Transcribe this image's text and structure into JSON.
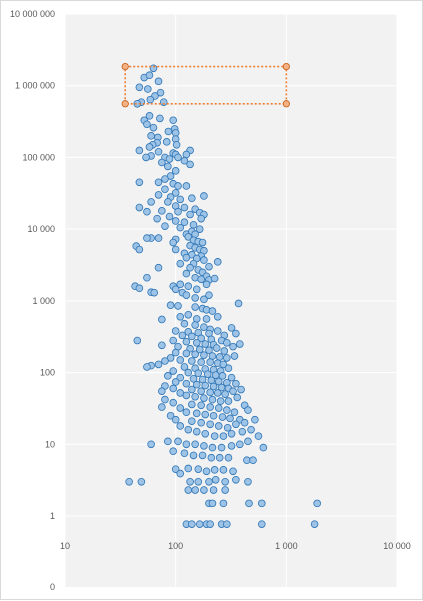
{
  "colors": {
    "point_fill": "#9dc3e6",
    "point_stroke": "#2e75b6",
    "selection": "#ed7d31",
    "plot_area": "#f2f2f2",
    "gridline": "#ffffff",
    "tick_text": "#595959"
  },
  "chart_data": {
    "type": "scatter",
    "title": "",
    "xlabel": "",
    "ylabel": "",
    "x_scale": "log",
    "y_scale": "log",
    "xlim": [
      10,
      10000
    ],
    "ylim": [
      1,
      10000000
    ],
    "grid": "vertical and horizontal major gridlines",
    "legend": "none",
    "x_ticks": [
      {
        "value": 10,
        "label": "10"
      },
      {
        "value": 100,
        "label": "100"
      },
      {
        "value": 1000,
        "label": "1 000"
      },
      {
        "value": 10000,
        "label": "10 000"
      }
    ],
    "y_ticks": [
      {
        "value": 10000000,
        "label": "10 000 000"
      },
      {
        "value": 1000000,
        "label": "1 000 000"
      },
      {
        "value": 100000,
        "label": "100 000"
      },
      {
        "value": 10000,
        "label": "10 000"
      },
      {
        "value": 1000,
        "label": "1 000"
      },
      {
        "value": 100,
        "label": "100"
      },
      {
        "value": 10,
        "label": "10"
      },
      {
        "value": 1,
        "label": "1"
      }
    ],
    "y_bottom_label": "0",
    "selection_box": {
      "x": [
        35,
        1000
      ],
      "y": [
        560000,
        1850000
      ]
    },
    "points": [
      [
        63,
        1750000
      ],
      [
        52,
        1300000
      ],
      [
        58,
        1400000
      ],
      [
        70,
        1150000
      ],
      [
        47,
        950000
      ],
      [
        56,
        900000
      ],
      [
        73,
        800000
      ],
      [
        65,
        720000
      ],
      [
        59,
        640000
      ],
      [
        49,
        590000
      ],
      [
        78,
        590000
      ],
      [
        45,
        560000
      ],
      [
        58,
        380000
      ],
      [
        72,
        350000
      ],
      [
        52,
        330000
      ],
      [
        95,
        330000
      ],
      [
        55,
        290000
      ],
      [
        63,
        260000
      ],
      [
        98,
        250000
      ],
      [
        86,
        230000
      ],
      [
        100,
        220000
      ],
      [
        60,
        200000
      ],
      [
        69,
        190000
      ],
      [
        100,
        180000
      ],
      [
        83,
        165000
      ],
      [
        68,
        160000
      ],
      [
        62,
        150000
      ],
      [
        102,
        150000
      ],
      [
        58,
        140000
      ],
      [
        47,
        125000
      ],
      [
        70,
        120000
      ],
      [
        95,
        115000
      ],
      [
        100,
        110000
      ],
      [
        135,
        125000
      ],
      [
        125,
        110000
      ],
      [
        60,
        105000
      ],
      [
        54,
        100000
      ],
      [
        80,
        100000
      ],
      [
        105,
        100000
      ],
      [
        88,
        95000
      ],
      [
        75,
        85000
      ],
      [
        120,
        90000
      ],
      [
        85,
        75000
      ],
      [
        100,
        65000
      ],
      [
        135,
        80000
      ],
      [
        90,
        55000
      ],
      [
        80,
        50000
      ],
      [
        70,
        45000
      ],
      [
        47,
        45000
      ],
      [
        95,
        43000
      ],
      [
        105,
        40000
      ],
      [
        125,
        40000
      ],
      [
        80,
        36000
      ],
      [
        100,
        32000
      ],
      [
        70,
        30000
      ],
      [
        90,
        28000
      ],
      [
        110,
        26000
      ],
      [
        180,
        29000
      ],
      [
        140,
        27000
      ],
      [
        85,
        24000
      ],
      [
        60,
        24000
      ],
      [
        47,
        20000
      ],
      [
        100,
        21000
      ],
      [
        120,
        20000
      ],
      [
        75,
        18000
      ],
      [
        55,
        17500
      ],
      [
        150,
        19000
      ],
      [
        165,
        17000
      ],
      [
        105,
        17500
      ],
      [
        135,
        16000
      ],
      [
        180,
        16000
      ],
      [
        88,
        15000
      ],
      [
        170,
        14000
      ],
      [
        68,
        14000
      ],
      [
        100,
        13000
      ],
      [
        120,
        12500
      ],
      [
        145,
        11500
      ],
      [
        80,
        11000
      ],
      [
        110,
        10500
      ],
      [
        165,
        10000
      ],
      [
        60,
        7500
      ],
      [
        55,
        7500
      ],
      [
        70,
        7500
      ],
      [
        44,
        5800
      ],
      [
        47,
        5200
      ],
      [
        100,
        7200
      ],
      [
        95,
        6500
      ],
      [
        125,
        8500
      ],
      [
        140,
        9300
      ],
      [
        150,
        8500
      ],
      [
        130,
        7800
      ],
      [
        145,
        7000
      ],
      [
        160,
        6700
      ],
      [
        175,
        6500
      ],
      [
        135,
        5900
      ],
      [
        150,
        5500
      ],
      [
        100,
        5200
      ],
      [
        165,
        5200
      ],
      [
        180,
        5000
      ],
      [
        120,
        4600
      ],
      [
        140,
        4400
      ],
      [
        125,
        4000
      ],
      [
        170,
        4200
      ],
      [
        155,
        3900
      ],
      [
        180,
        3700
      ],
      [
        110,
        3300
      ],
      [
        145,
        3300
      ],
      [
        240,
        3500
      ],
      [
        200,
        3000
      ],
      [
        135,
        2900
      ],
      [
        160,
        2700
      ],
      [
        175,
        2500
      ],
      [
        125,
        2400
      ],
      [
        190,
        2200
      ],
      [
        70,
        2900
      ],
      [
        55,
        2100
      ],
      [
        150,
        2100
      ],
      [
        170,
        2000
      ],
      [
        200,
        1950
      ],
      [
        225,
        2050
      ],
      [
        110,
        1700
      ],
      [
        130,
        1600
      ],
      [
        190,
        1700
      ],
      [
        95,
        1600
      ],
      [
        43,
        1600
      ],
      [
        47,
        1500
      ],
      [
        100,
        1450
      ],
      [
        155,
        1450
      ],
      [
        115,
        1300
      ],
      [
        60,
        1320
      ],
      [
        64,
        1300
      ],
      [
        125,
        1200
      ],
      [
        150,
        1100
      ],
      [
        180,
        1050
      ],
      [
        200,
        1200
      ],
      [
        370,
        920
      ],
      [
        90,
        870
      ],
      [
        105,
        850
      ],
      [
        150,
        820
      ],
      [
        175,
        780
      ],
      [
        190,
        750
      ],
      [
        215,
        720
      ],
      [
        130,
        640
      ],
      [
        75,
        550
      ],
      [
        110,
        600
      ],
      [
        155,
        560
      ],
      [
        190,
        560
      ],
      [
        240,
        600
      ],
      [
        120,
        480
      ],
      [
        150,
        460
      ],
      [
        180,
        430
      ],
      [
        205,
        400
      ],
      [
        100,
        380
      ],
      [
        130,
        370
      ],
      [
        160,
        360
      ],
      [
        200,
        350
      ],
      [
        240,
        380
      ],
      [
        275,
        330
      ],
      [
        320,
        420
      ],
      [
        115,
        330
      ],
      [
        140,
        320
      ],
      [
        170,
        300
      ],
      [
        210,
        290
      ],
      [
        260,
        280
      ],
      [
        290,
        260
      ],
      [
        350,
        350
      ],
      [
        45,
        280
      ],
      [
        95,
        280
      ],
      [
        125,
        270
      ],
      [
        155,
        260
      ],
      [
        185,
        250
      ],
      [
        220,
        245
      ],
      [
        75,
        240
      ],
      [
        105,
        230
      ],
      [
        135,
        215
      ],
      [
        165,
        210
      ],
      [
        200,
        205
      ],
      [
        235,
        220
      ],
      [
        275,
        200
      ],
      [
        330,
        230
      ],
      [
        380,
        250
      ],
      [
        100,
        190
      ],
      [
        125,
        185
      ],
      [
        150,
        180
      ],
      [
        180,
        175
      ],
      [
        215,
        170
      ],
      [
        250,
        165
      ],
      [
        290,
        160
      ],
      [
        340,
        170
      ],
      [
        90,
        160
      ],
      [
        110,
        150
      ],
      [
        140,
        145
      ],
      [
        170,
        140
      ],
      [
        205,
        140
      ],
      [
        240,
        135
      ],
      [
        270,
        130
      ],
      [
        80,
        145
      ],
      [
        70,
        130
      ],
      [
        60,
        125
      ],
      [
        55,
        120
      ],
      [
        120,
        120
      ],
      [
        150,
        115
      ],
      [
        185,
        112
      ],
      [
        220,
        110
      ],
      [
        255,
        105
      ],
      [
        300,
        115
      ],
      [
        95,
        105
      ],
      [
        130,
        100
      ],
      [
        160,
        98
      ],
      [
        195,
        95
      ],
      [
        230,
        92
      ],
      [
        265,
        90
      ],
      [
        320,
        85
      ],
      [
        85,
        90
      ],
      [
        110,
        85
      ],
      [
        145,
        82
      ],
      [
        175,
        80
      ],
      [
        210,
        78
      ],
      [
        245,
        75
      ],
      [
        290,
        72
      ],
      [
        350,
        70
      ],
      [
        100,
        74
      ],
      [
        125,
        70
      ],
      [
        155,
        68
      ],
      [
        185,
        66
      ],
      [
        220,
        64
      ],
      [
        260,
        62
      ],
      [
        300,
        60
      ],
      [
        80,
        65
      ],
      [
        95,
        60
      ],
      [
        140,
        58
      ],
      [
        170,
        55
      ],
      [
        205,
        53
      ],
      [
        240,
        52
      ],
      [
        280,
        50
      ],
      [
        330,
        55
      ],
      [
        390,
        58
      ],
      [
        75,
        55
      ],
      [
        110,
        52
      ],
      [
        125,
        48
      ],
      [
        150,
        46
      ],
      [
        180,
        44
      ],
      [
        215,
        42
      ],
      [
        255,
        40
      ],
      [
        300,
        40
      ],
      [
        360,
        45
      ],
      [
        80,
        42
      ],
      [
        95,
        38
      ],
      [
        140,
        36
      ],
      [
        170,
        35
      ],
      [
        205,
        33
      ],
      [
        245,
        32
      ],
      [
        290,
        30
      ],
      [
        340,
        28
      ],
      [
        420,
        35
      ],
      [
        75,
        33
      ],
      [
        110,
        32
      ],
      [
        125,
        28
      ],
      [
        155,
        27
      ],
      [
        185,
        26
      ],
      [
        220,
        25
      ],
      [
        265,
        24
      ],
      [
        310,
        23
      ],
      [
        380,
        22
      ],
      [
        450,
        30
      ],
      [
        90,
        25
      ],
      [
        100,
        22
      ],
      [
        140,
        21
      ],
      [
        170,
        20
      ],
      [
        205,
        19
      ],
      [
        245,
        18
      ],
      [
        295,
        17
      ],
      [
        350,
        19
      ],
      [
        420,
        20
      ],
      [
        520,
        22
      ],
      [
        110,
        18
      ],
      [
        130,
        16
      ],
      [
        155,
        15
      ],
      [
        185,
        14
      ],
      [
        225,
        13
      ],
      [
        270,
        13
      ],
      [
        320,
        14
      ],
      [
        400,
        15
      ],
      [
        480,
        16
      ],
      [
        560,
        13
      ],
      [
        60,
        10
      ],
      [
        85,
        11
      ],
      [
        105,
        11
      ],
      [
        125,
        10
      ],
      [
        150,
        10
      ],
      [
        180,
        9.5
      ],
      [
        215,
        9
      ],
      [
        260,
        9
      ],
      [
        320,
        9.5
      ],
      [
        380,
        10
      ],
      [
        450,
        11
      ],
      [
        620,
        9
      ],
      [
        95,
        8
      ],
      [
        120,
        7.5
      ],
      [
        145,
        7
      ],
      [
        175,
        7
      ],
      [
        210,
        6.5
      ],
      [
        250,
        6.5
      ],
      [
        300,
        6.5
      ],
      [
        440,
        6
      ],
      [
        500,
        6
      ],
      [
        100,
        4.5
      ],
      [
        130,
        4.6
      ],
      [
        160,
        4.5
      ],
      [
        190,
        4.2
      ],
      [
        225,
        4.4
      ],
      [
        270,
        4.4
      ],
      [
        330,
        4.2
      ],
      [
        110,
        3.9
      ],
      [
        135,
        3
      ],
      [
        160,
        3
      ],
      [
        200,
        3
      ],
      [
        230,
        3.2
      ],
      [
        280,
        3
      ],
      [
        350,
        3.2
      ],
      [
        450,
        3
      ],
      [
        38,
        3
      ],
      [
        49,
        3
      ],
      [
        130,
        2.3
      ],
      [
        150,
        2.3
      ],
      [
        180,
        2.3
      ],
      [
        220,
        2.3
      ],
      [
        280,
        2.3
      ],
      [
        200,
        1.5
      ],
      [
        215,
        1.5
      ],
      [
        270,
        1.5
      ],
      [
        460,
        1.5
      ],
      [
        600,
        1.5
      ],
      [
        1900,
        1.5
      ],
      [
        125,
        0.77
      ],
      [
        140,
        0.77
      ],
      [
        165,
        0.77
      ],
      [
        190,
        0.77
      ],
      [
        205,
        0.77
      ],
      [
        260,
        0.77
      ],
      [
        290,
        0.77
      ],
      [
        600,
        0.77
      ],
      [
        1800,
        0.77
      ]
    ]
  }
}
